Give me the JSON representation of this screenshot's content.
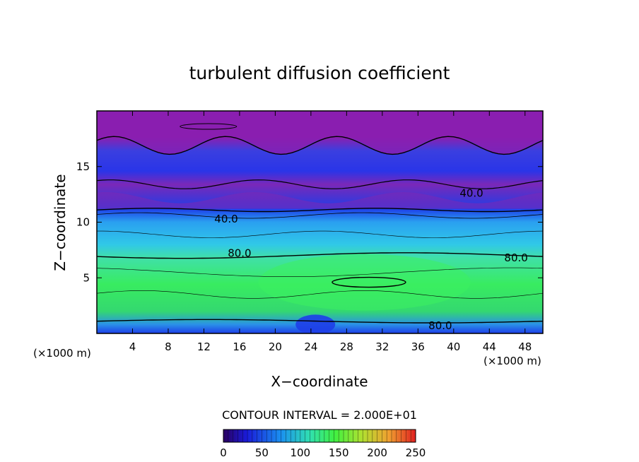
{
  "chart_data": {
    "type": "heatmap",
    "title": "turbulent diffusion coefficient",
    "xlabel": "X−coordinate",
    "ylabel": "Z−coordinate",
    "x_unit_left": "(×1000 m)",
    "x_unit_right": "(×1000 m)",
    "xlim": [
      0,
      50
    ],
    "ylim": [
      0,
      20
    ],
    "x_ticks": [
      4,
      8,
      12,
      16,
      20,
      24,
      28,
      32,
      36,
      40,
      44,
      48
    ],
    "y_ticks": [
      5,
      10,
      15
    ],
    "contour_interval_text": "CONTOUR INTERVAL = 2.000E+01",
    "colorbar": {
      "min": 0,
      "max": 250,
      "tick_values": [
        0,
        50,
        100,
        150,
        200,
        250
      ]
    },
    "contour_labels": [
      {
        "text": "40.0",
        "x": 42,
        "y": 12.6
      },
      {
        "text": "40.0",
        "x": 14.5,
        "y": 10.3
      },
      {
        "text": "80.0",
        "x": 16,
        "y": 7.2
      },
      {
        "text": "80.0",
        "x": 47,
        "y": 6.8
      },
      {
        "text": "80.0",
        "x": 38.5,
        "y": 0.7
      }
    ],
    "layers": [
      {
        "z_top": 20.0,
        "z_bottom": 17.5,
        "value": 0
      },
      {
        "z_top": 17.5,
        "z_bottom": 15.0,
        "value": 25
      },
      {
        "z_top": 15.0,
        "z_bottom": 12.6,
        "value": 12
      },
      {
        "z_top": 12.6,
        "z_bottom": 11.0,
        "value": 8
      },
      {
        "z_top": 11.0,
        "z_bottom": 9.0,
        "value": 55
      },
      {
        "z_top": 9.0,
        "z_bottom": 7.0,
        "value": 70
      },
      {
        "z_top": 7.0,
        "z_bottom": 3.5,
        "value": 125
      },
      {
        "z_top": 3.5,
        "z_bottom": 1.0,
        "value": 110
      },
      {
        "z_top": 1.0,
        "z_bottom": 0.0,
        "value": 45
      }
    ]
  }
}
